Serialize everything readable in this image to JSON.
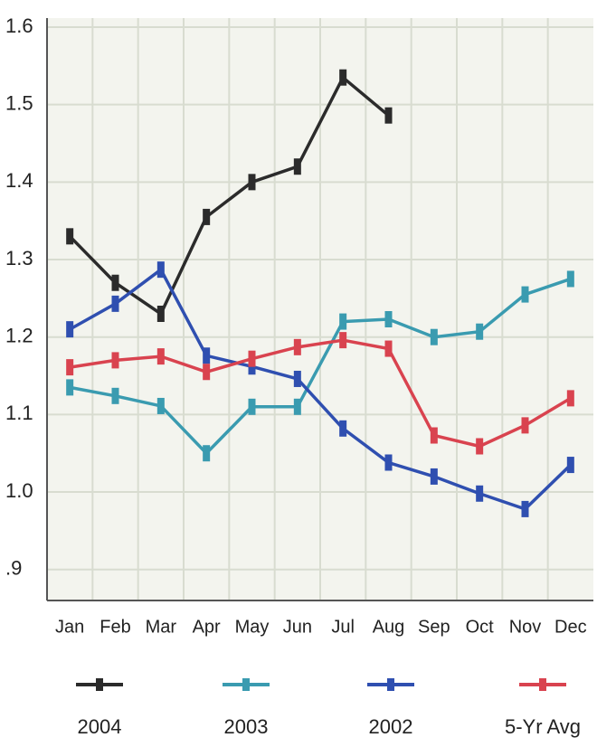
{
  "chart_data": {
    "type": "line",
    "categories": [
      "Jan",
      "Feb",
      "Mar",
      "Apr",
      "May",
      "Jun",
      "Jul",
      "Aug",
      "Sep",
      "Oct",
      "Nov",
      "Dec"
    ],
    "series": [
      {
        "name": "2004",
        "color": "#2b2b2b",
        "values": [
          1.33,
          1.27,
          1.23,
          1.355,
          1.4,
          1.42,
          1.535,
          1.486,
          null,
          null,
          null,
          null
        ]
      },
      {
        "name": "2003",
        "color": "#3a9bb0",
        "values": [
          1.135,
          1.124,
          1.111,
          1.05,
          1.11,
          1.11,
          1.22,
          1.223,
          1.2,
          1.207,
          1.255,
          1.275
        ]
      },
      {
        "name": "2002",
        "color": "#2f4fb0",
        "values": [
          1.21,
          1.243,
          1.287,
          1.176,
          1.162,
          1.146,
          1.082,
          1.038,
          1.02,
          0.998,
          0.978,
          1.035
        ]
      },
      {
        "name": "5-Yr Avg",
        "color": "#d9434f",
        "values": [
          1.161,
          1.17,
          1.175,
          1.155,
          1.172,
          1.187,
          1.196,
          1.185,
          1.073,
          1.059,
          1.086,
          1.121
        ]
      }
    ],
    "ylim": [
      0.86,
      1.6
    ],
    "yticks": [
      {
        "value": 0.9,
        "label": ".9"
      },
      {
        "value": 1.0,
        "label": "1.0"
      },
      1.1,
      1.2,
      1.3,
      1.4,
      1.5,
      1.6
    ],
    "grid": true,
    "legend": "bottom"
  }
}
